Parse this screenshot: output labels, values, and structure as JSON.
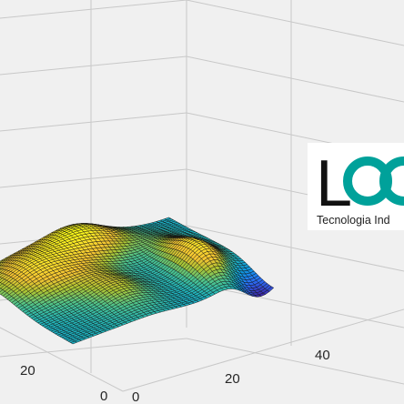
{
  "chart_data": {
    "type": "surface",
    "title": "",
    "xlabel": "",
    "ylabel": "",
    "zlabel": "",
    "colormap": [
      "#3e26a8",
      "#2a6ef6",
      "#0f96e0",
      "#1fb3bc",
      "#4fc38a",
      "#abc434",
      "#f3c232",
      "#fadf2c",
      "#f9fb15"
    ],
    "grid": true,
    "x_axis": {
      "ticks": [
        0,
        20
      ],
      "range": [
        0,
        49
      ]
    },
    "y_axis": {
      "ticks": [
        0,
        20,
        40
      ],
      "range": [
        0,
        49
      ]
    },
    "grid_size": [
      49,
      49
    ],
    "surface": "peaks-like smooth surface with two ridges and a valley"
  },
  "logo": {
    "mark_letter": "L",
    "tagline": "Tecnologia Ind",
    "colors": {
      "dark": "#111111",
      "teal": "#00a19a"
    }
  },
  "axis_labels": {
    "left": [
      "20",
      "0"
    ],
    "front": [
      "0",
      "20",
      "40"
    ]
  }
}
